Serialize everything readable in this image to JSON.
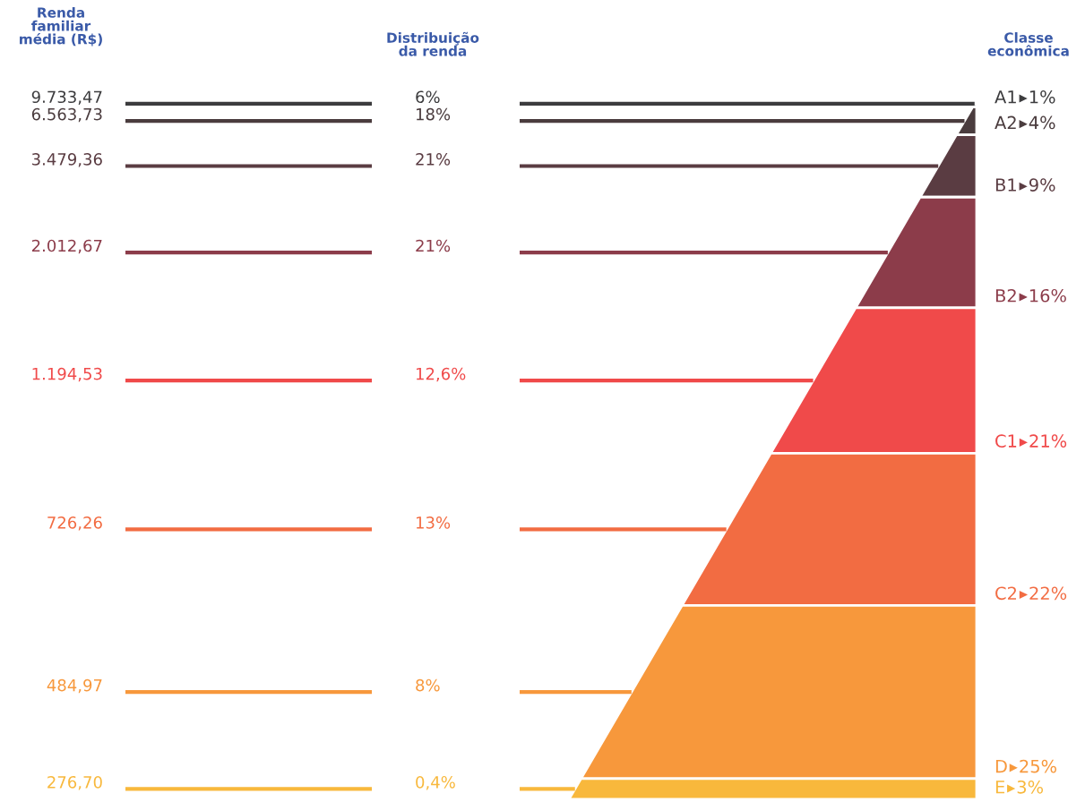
{
  "chart_data": {
    "type": "other",
    "categories": [
      "A1",
      "A2",
      "B1",
      "B2",
      "C1",
      "C2",
      "D",
      "E"
    ],
    "colors": [
      "#3c3c3e",
      "#4a3c3e",
      "#5a3c42",
      "#8c3c4a",
      "#f04a4a",
      "#f26c42",
      "#f7983c",
      "#f8b83c"
    ],
    "series": [
      {
        "name": "Renda familiar média (R$)",
        "values": [
          9733.47,
          6563.73,
          3479.36,
          2012.67,
          1194.53,
          726.26,
          484.97,
          276.7
        ],
        "value_labels": [
          "9.733,47",
          "6.563,73",
          "3.479,36",
          "2.012,67",
          "1.194,53",
          "726,26",
          "484,97",
          "276,70"
        ]
      },
      {
        "name": "Distribuição da renda",
        "values": [
          6,
          18,
          21,
          21,
          12.6,
          13,
          8,
          0.4
        ],
        "value_labels": [
          "6%",
          "18%",
          "21%",
          "21%",
          "12,6%",
          "13%",
          "8%",
          "0,4%"
        ]
      },
      {
        "name": "Classe econômica",
        "values": [
          1,
          4,
          9,
          16,
          21,
          22,
          25,
          3
        ],
        "value_labels": [
          "1%",
          "4%",
          "9%",
          "16%",
          "21%",
          "22%",
          "25%",
          "3%"
        ]
      }
    ]
  }
}
